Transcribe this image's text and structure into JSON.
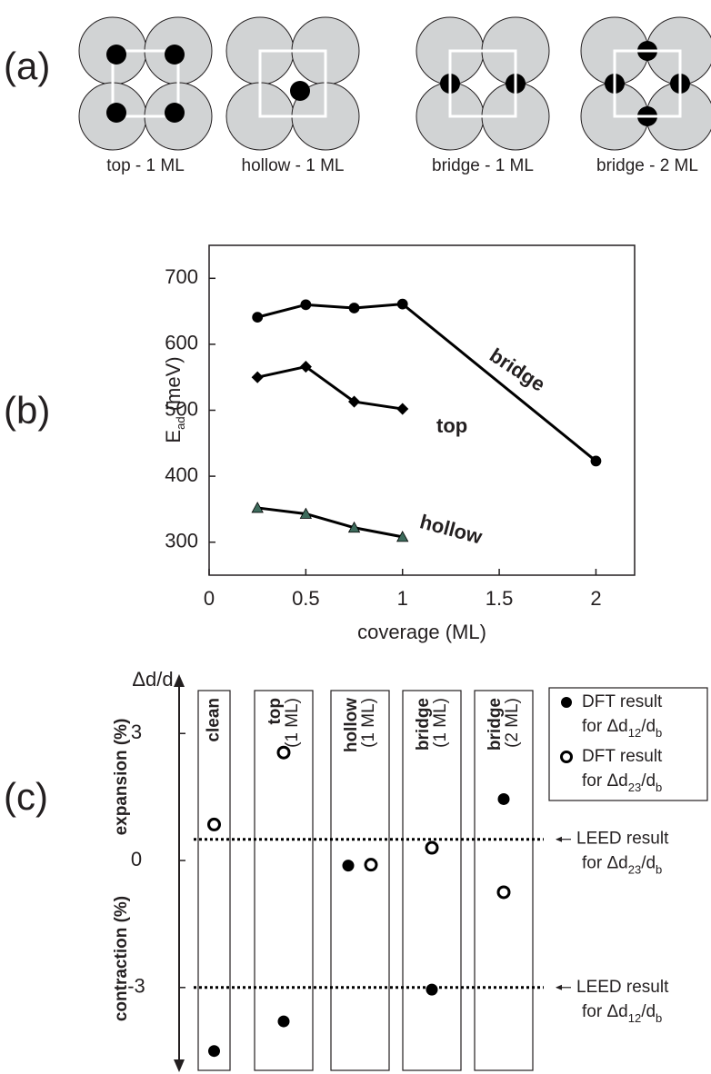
{
  "panel_a": {
    "panel_label": "(a)",
    "labels": [
      "top - 1 ML",
      "hollow - 1 ML",
      "bridge - 1 ML",
      "bridge - 2 ML"
    ]
  },
  "chart_data": [
    {
      "type": "line",
      "panel_label": "(b)",
      "x": [
        0.25,
        0.5,
        0.75,
        1,
        2
      ],
      "series": [
        {
          "name": "bridge",
          "color": "#000000",
          "marker": "circle",
          "marker_color": "#000000",
          "values": [
            641,
            660,
            655,
            661,
            423
          ]
        },
        {
          "name": "top",
          "color": "#000000",
          "marker": "diamond",
          "marker_color": "#000000",
          "values": [
            550,
            566,
            513,
            502,
            null
          ]
        },
        {
          "name": "hollow",
          "color": "#000000",
          "marker": "triangle",
          "marker_color": "#3d6b5c",
          "values": [
            352,
            343,
            322,
            308,
            null
          ]
        }
      ],
      "xlabel": "coverage (ML)",
      "ylabel": [
        "E",
        "ad",
        " (meV)"
      ],
      "xlim": [
        0,
        2.2
      ],
      "ylim": [
        250,
        750
      ],
      "xticks": [
        0,
        0.5,
        1,
        1.5,
        2
      ],
      "yticks": [
        300,
        400,
        500,
        600,
        700
      ]
    },
    {
      "type": "dot",
      "panel_label": "(c)",
      "categories": [
        "clean",
        "top",
        "hollow",
        "bridge",
        "bridge"
      ],
      "category_notes": [
        null,
        "(1 ML)",
        "(1 ML)",
        "(1 ML)",
        "(2 ML)"
      ],
      "series": [
        {
          "name": [
            "DFT result",
            "for Δd",
            "12",
            "/d",
            "b"
          ],
          "marker": "filled",
          "color": "#000000",
          "values": [
            -4.5,
            -3.8,
            -0.12,
            -3.05,
            1.45
          ]
        },
        {
          "name": [
            "DFT result",
            "for Δd",
            "23",
            "/d",
            "b"
          ],
          "marker": "open",
          "color": "#000000",
          "values": [
            0.85,
            2.55,
            -0.1,
            0.3,
            -0.75
          ]
        }
      ],
      "ylabel": "Δd/d",
      "annotations": [
        "expansion (%)",
        "contraction (%)"
      ],
      "reference_lines": [
        {
          "value": 0.5,
          "label": [
            "LEED result",
            "for Δd",
            "23",
            "/d",
            "b"
          ]
        },
        {
          "value": -3,
          "label": [
            "LEED result",
            "for Δd",
            "12",
            "/d",
            "b"
          ]
        }
      ],
      "ylim": [
        -5,
        4.4
      ],
      "yticks": [
        3,
        0,
        -3
      ]
    }
  ]
}
